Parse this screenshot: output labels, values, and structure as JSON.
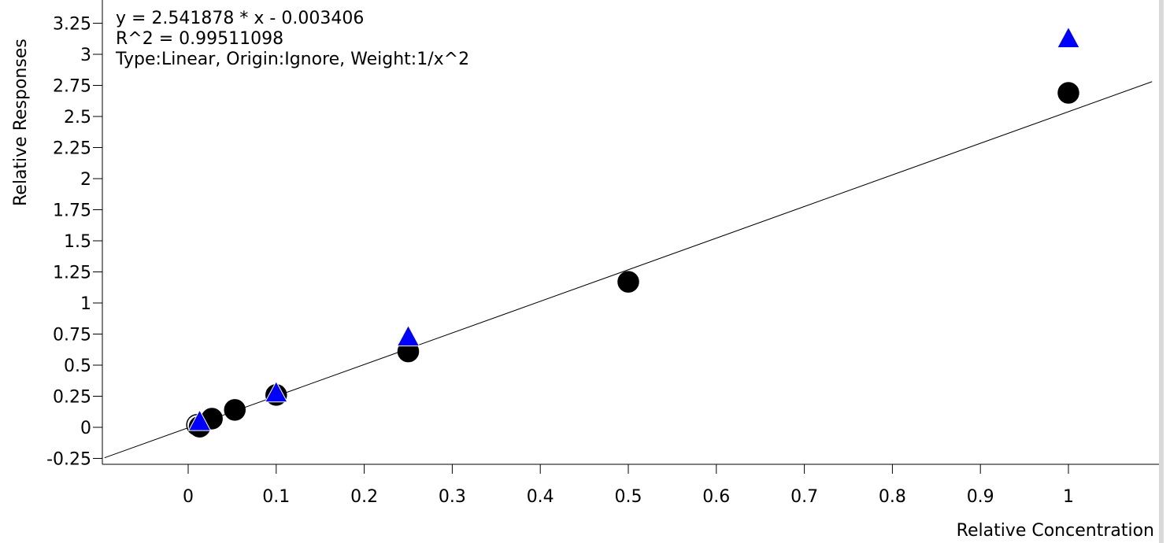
{
  "chart_data": {
    "type": "scatter",
    "title": "",
    "xlabel": "Relative Concentration",
    "ylabel": "Relative Responses",
    "annotations": [
      "y = 2.541878 * x  - 0.003406",
      "R^2 = 0.99511098",
      "Type:Linear, Origin:Ignore, Weight:1/x^2"
    ],
    "xlim": [
      -0.095,
      1.095
    ],
    "ylim": [
      -0.33,
      3.4
    ],
    "x_ticks": [
      0,
      0.1,
      0.2,
      0.3,
      0.4,
      0.5,
      0.6,
      0.7,
      0.8,
      0.9,
      1
    ],
    "x_tick_labels": [
      "0",
      "0.1",
      "0.2",
      "0.3",
      "0.4",
      "0.5",
      "0.6",
      "0.7",
      "0.8",
      "0.9",
      "1"
    ],
    "y_ticks": [
      -0.25,
      0,
      0.25,
      0.5,
      0.75,
      1,
      1.25,
      1.5,
      1.75,
      2,
      2.25,
      2.5,
      2.75,
      3,
      3.25
    ],
    "y_tick_labels": [
      "-0.25",
      "0",
      "0.25",
      "0.5",
      "0.75",
      "1",
      "1.25",
      "1.5",
      "1.75",
      "2",
      "2.25",
      "2.5",
      "2.75",
      "3",
      "3.25"
    ],
    "grid": false,
    "fit_line": {
      "slope": 2.541878,
      "intercept": -0.003406,
      "x_range": [
        -0.095,
        1.095
      ],
      "color": "#000000"
    },
    "series": [
      {
        "marker": "circle",
        "color": "#000000",
        "points": [
          {
            "x": 0.01,
            "y": 0.02,
            "filled": false
          },
          {
            "x": 0.013,
            "y": 0.005,
            "filled": true
          },
          {
            "x": 0.027,
            "y": 0.07,
            "filled": true
          },
          {
            "x": 0.053,
            "y": 0.14,
            "filled": true
          },
          {
            "x": 0.1,
            "y": 0.26,
            "filled": true
          },
          {
            "x": 0.25,
            "y": 0.61,
            "filled": true
          },
          {
            "x": 0.5,
            "y": 1.17,
            "filled": true
          },
          {
            "x": 1.0,
            "y": 2.69,
            "filled": true
          }
        ]
      },
      {
        "marker": "triangle",
        "color": "#0000ff",
        "points": [
          {
            "x": 0.013,
            "y": 0.04
          },
          {
            "x": 0.1,
            "y": 0.27
          },
          {
            "x": 0.25,
            "y": 0.72
          },
          {
            "x": 1.0,
            "y": 3.12
          }
        ]
      }
    ]
  }
}
